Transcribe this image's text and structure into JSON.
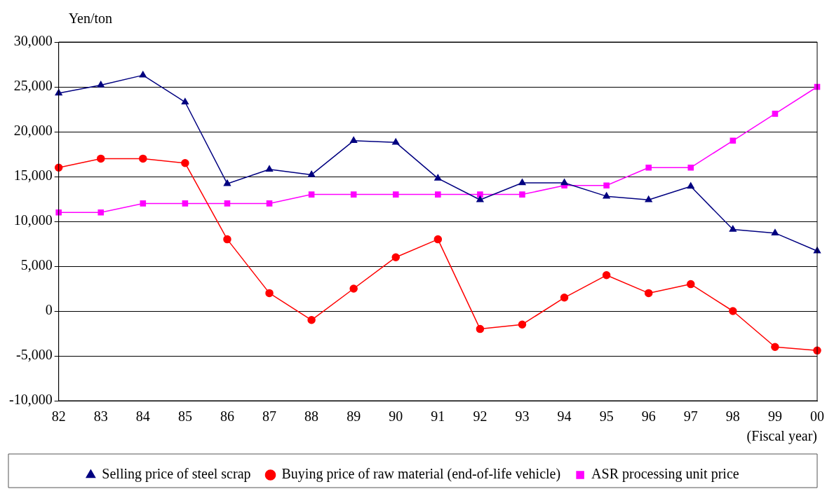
{
  "chart_data": {
    "type": "line",
    "ylabel": "Yen/ton",
    "xlabel": "(Fiscal year)",
    "categories": [
      "82",
      "83",
      "84",
      "85",
      "86",
      "87",
      "88",
      "89",
      "90",
      "91",
      "92",
      "93",
      "94",
      "95",
      "96",
      "97",
      "98",
      "99",
      "00"
    ],
    "series": [
      {
        "name": "Selling price of steel scrap",
        "color": "#000080",
        "marker": "triangle",
        "values": [
          24300,
          25200,
          26300,
          23300,
          14200,
          15800,
          15200,
          19000,
          18800,
          14800,
          12400,
          14300,
          14300,
          12800,
          12400,
          13900,
          9100,
          8700,
          6700
        ]
      },
      {
        "name": "Buying price of raw material (end-of-life vehicle)",
        "color": "#ff0000",
        "marker": "circle",
        "values": [
          16000,
          17000,
          17000,
          16500,
          8000,
          2000,
          -1000,
          2500,
          6000,
          8000,
          -2000,
          -1500,
          1500,
          4000,
          2000,
          3000,
          0,
          -4000,
          -4400
        ]
      },
      {
        "name": "ASR processing unit price",
        "color": "#ff00ff",
        "marker": "square",
        "values": [
          11000,
          11000,
          12000,
          12000,
          12000,
          12000,
          13000,
          13000,
          13000,
          13000,
          13000,
          13000,
          14000,
          14000,
          16000,
          16000,
          19000,
          22000,
          25000
        ]
      }
    ],
    "ylim": [
      -10000,
      30000
    ],
    "yticks": [
      {
        "value": -10000,
        "label": "-10,000"
      },
      {
        "value": -5000,
        "label": "-5,000"
      },
      0,
      {
        "value": 5000,
        "label": "5,000"
      },
      {
        "value": 10000,
        "label": "10,000"
      },
      {
        "value": 15000,
        "label": "15,000"
      },
      {
        "value": 20000,
        "label": "20,000"
      },
      {
        "value": 25000,
        "label": "25,000"
      },
      {
        "value": 30000,
        "label": "30,000"
      }
    ],
    "grid": "y",
    "legend": "bottom",
    "line_style": "solid"
  }
}
